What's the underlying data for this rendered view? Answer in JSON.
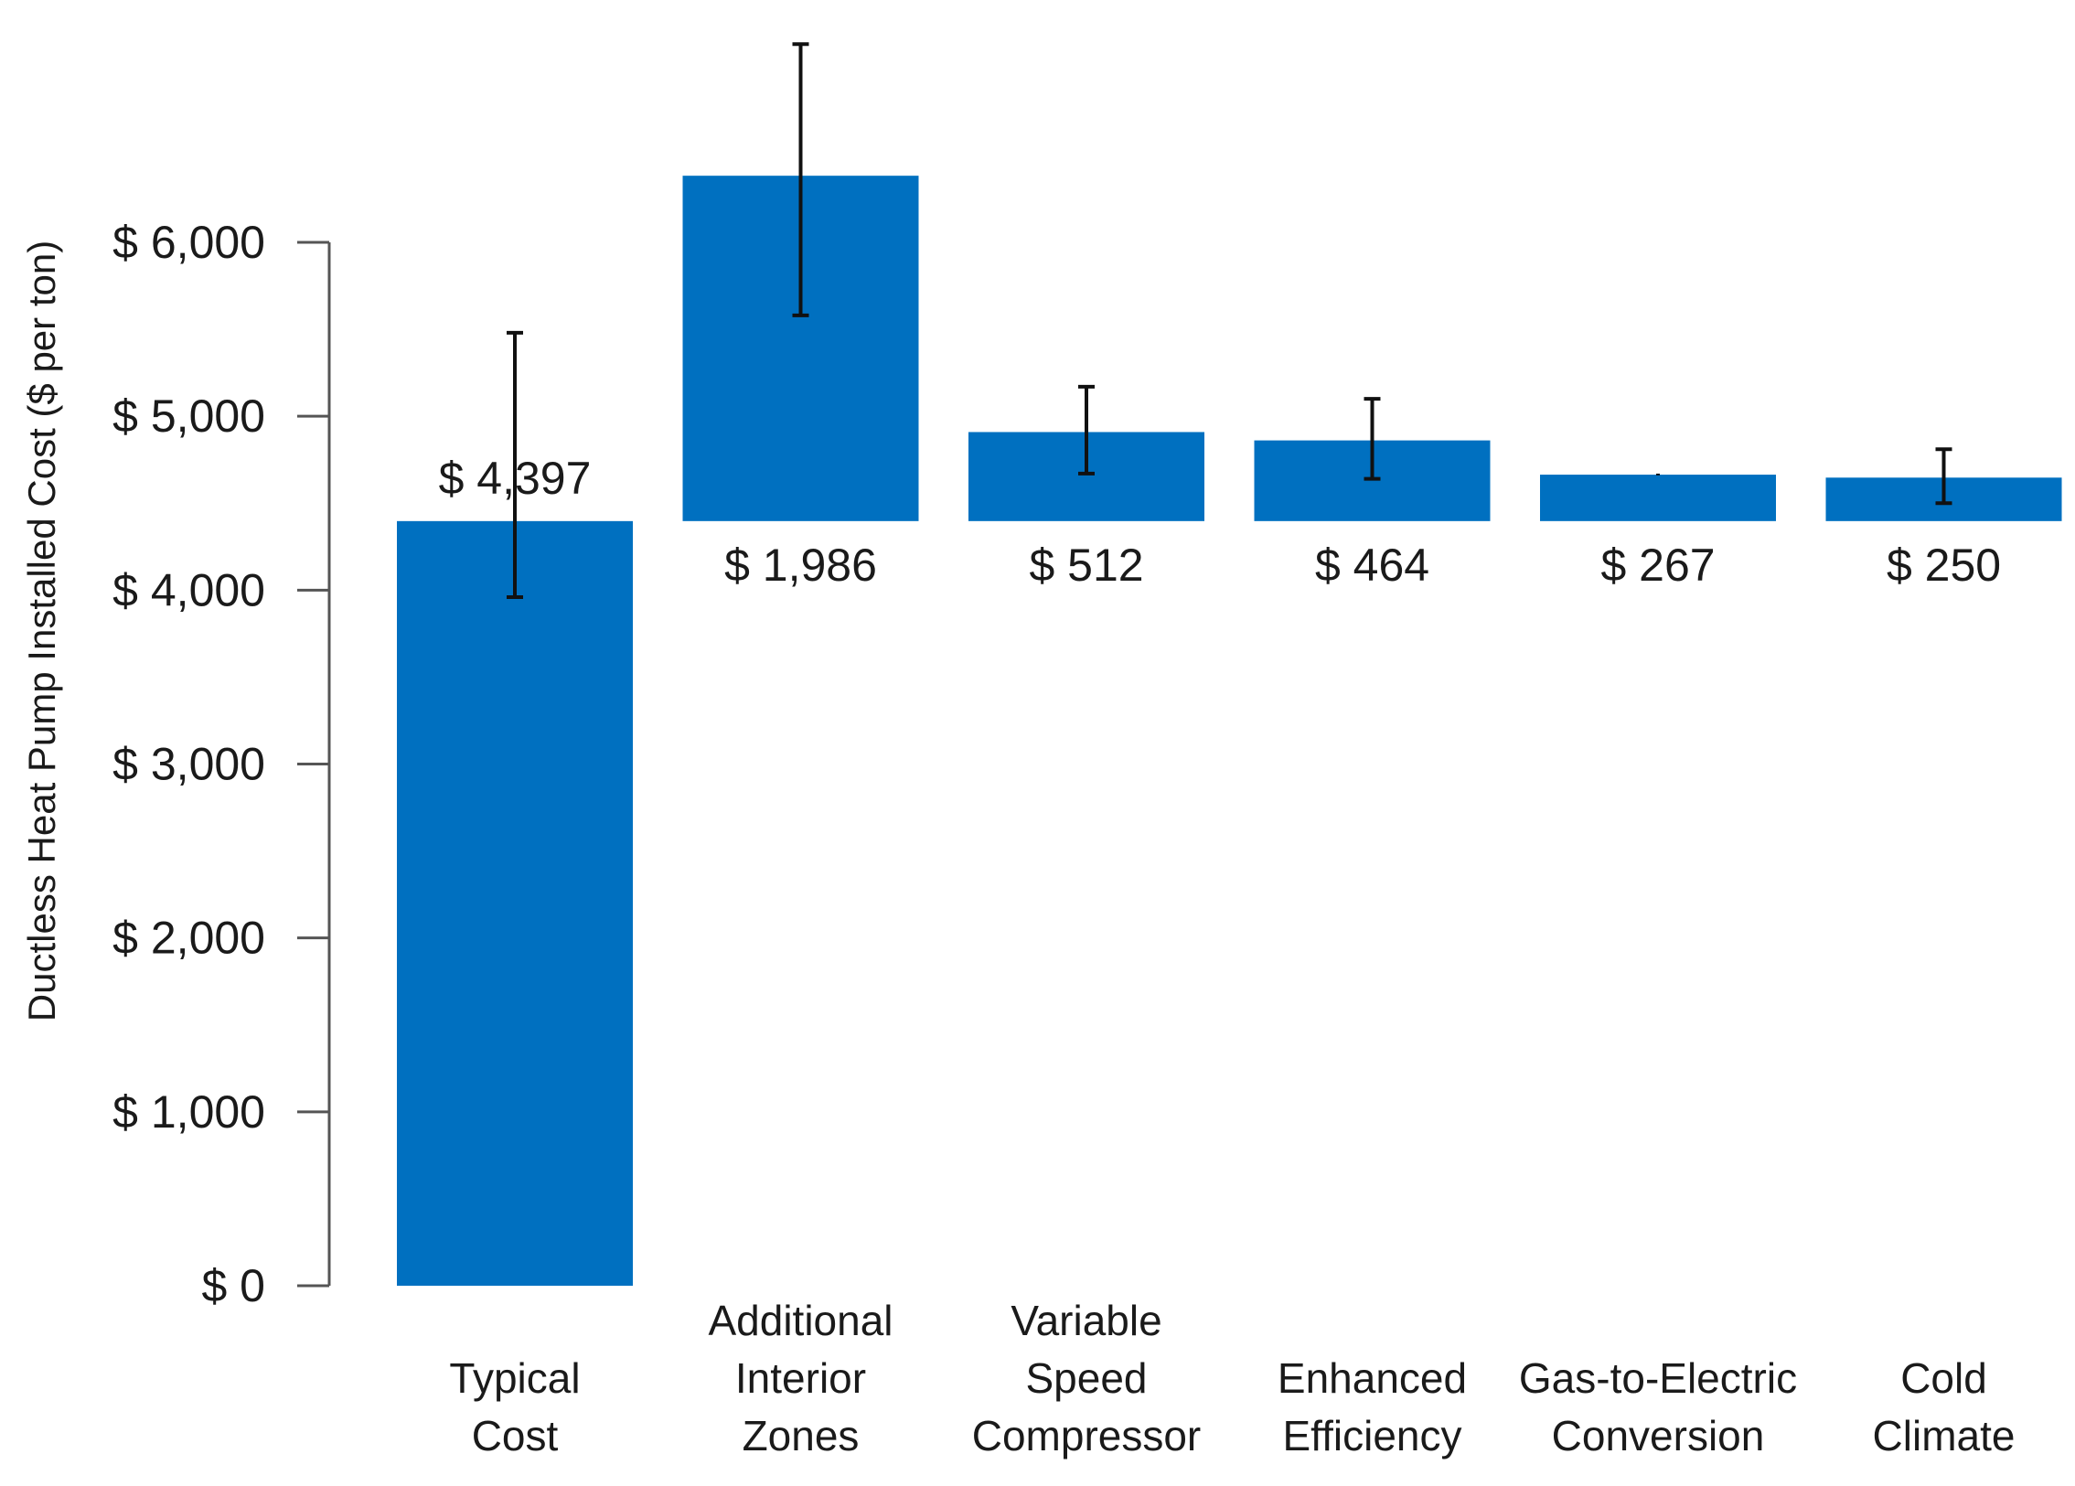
{
  "chart_data": {
    "type": "bar",
    "subtype": "waterfall",
    "title": "",
    "xlabel": "",
    "ylabel": "Ductless Heat Pump Installed Cost ($ per ton)",
    "ylim": [
      0,
      6000
    ],
    "yticks": [
      0,
      1000,
      2000,
      3000,
      4000,
      5000,
      6000
    ],
    "ytick_labels": [
      "$ 0",
      "$ 1,000",
      "$ 2,000",
      "$ 3,000",
      "$ 4,000",
      "$ 5,000",
      "$ 6,000"
    ],
    "color": "#0070c0",
    "categories": [
      [
        "Typical",
        "Cost"
      ],
      [
        "Additional",
        "Interior",
        "Zones"
      ],
      [
        "Variable",
        "Speed",
        "Compressor"
      ],
      [
        "Enhanced",
        "Efficiency"
      ],
      [
        "Gas-to-Electric",
        "Conversion"
      ],
      [
        "Cold",
        "Climate"
      ]
    ],
    "base": [
      0,
      4397,
      4397,
      4397,
      4397,
      4397
    ],
    "values": [
      4397,
      1986,
      512,
      464,
      267,
      250
    ],
    "value_labels": [
      "$ 4,397",
      "$ 1,986",
      "$ 512",
      "$ 464",
      "$ 267",
      "$ 250"
    ],
    "error_low": [
      3960,
      5580,
      4670,
      4640,
      4660,
      4500
    ],
    "error_high": [
      5480,
      7140,
      5170,
      5100,
      4670,
      4810
    ]
  }
}
